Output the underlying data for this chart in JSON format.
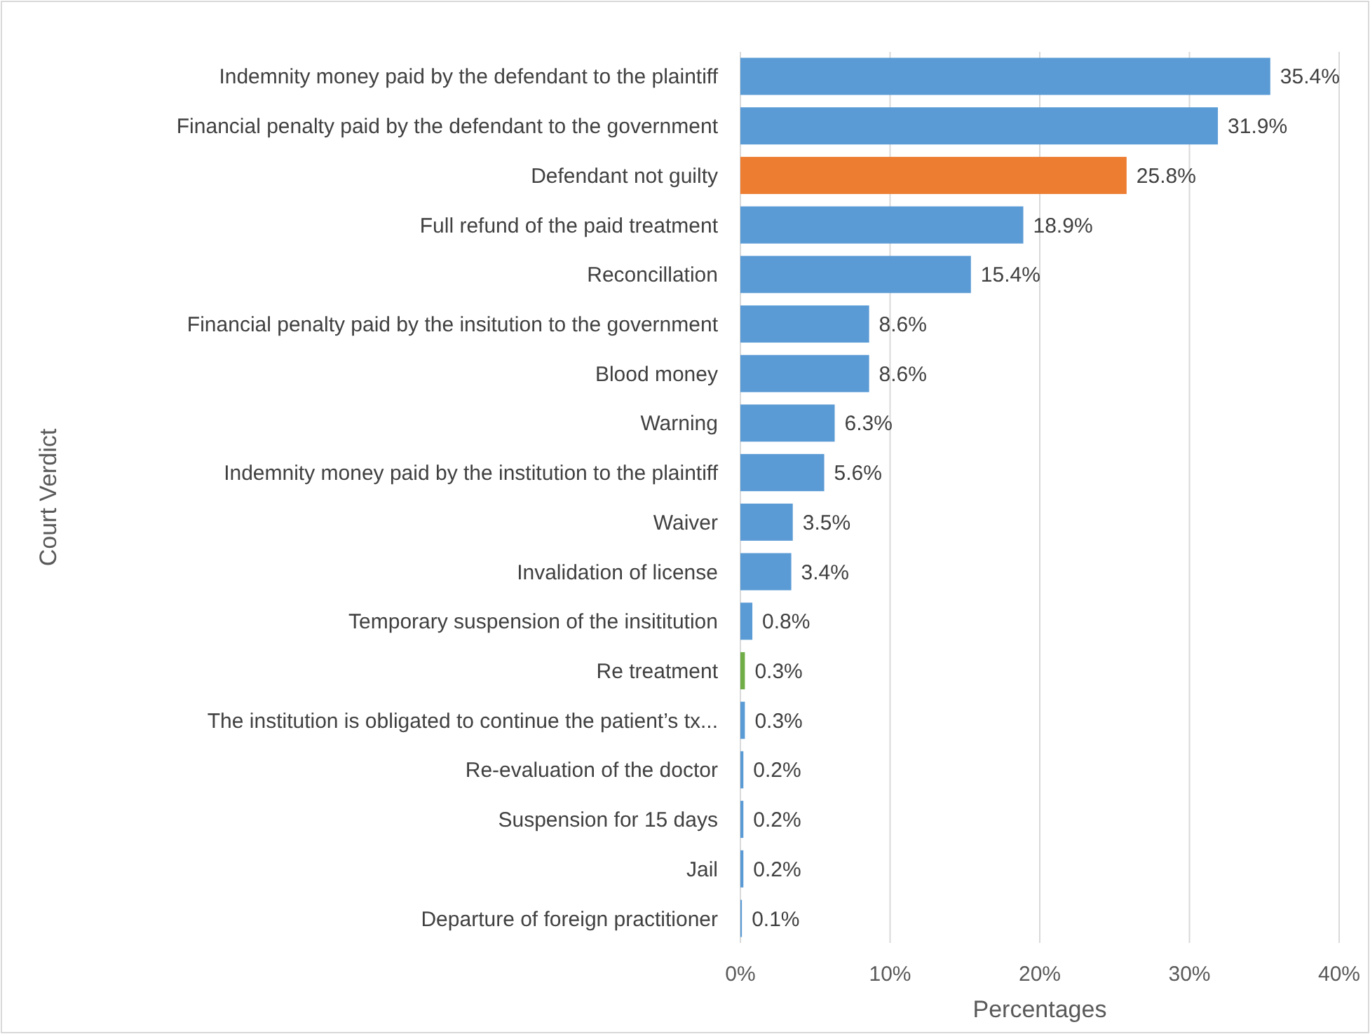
{
  "chart_data": {
    "type": "bar",
    "orientation": "horizontal",
    "xlabel": "Percentages",
    "ylabel": "Court Verdict",
    "categories": [
      "Indemnity money paid by the defendant to the plaintiff",
      "Financial penalty paid by the defendant to the government",
      "Defendant not guilty",
      "Full refund of the paid treatment",
      "Reconcillation",
      "Financial penalty paid by the insitution to the government",
      "Blood money",
      "Warning",
      "Indemnity money paid by the institution to the plaintiff",
      "Waiver",
      "Invalidation of license",
      "Temporary suspension of the insititution",
      "Re treatment",
      "The institution is obligated to continue the patient’s tx...",
      "Re-evaluation of the doctor",
      "Suspension for 15 days",
      "Jail",
      "Departure of foreign practitioner"
    ],
    "values": [
      35.4,
      31.9,
      25.8,
      18.9,
      15.4,
      8.6,
      8.6,
      6.3,
      5.6,
      3.5,
      3.4,
      0.8,
      0.3,
      0.3,
      0.2,
      0.2,
      0.2,
      0.1
    ],
    "value_labels": [
      "35.4%",
      "31.9%",
      "25.8%",
      "18.9%",
      "15.4%",
      "8.6%",
      "8.6%",
      "6.3%",
      "5.6%",
      "3.5%",
      "3.4%",
      "0.8%",
      "0.3%",
      "0.3%",
      "0.2%",
      "0.2%",
      "0.2%",
      "0.1%"
    ],
    "colors": [
      "#5b9bd5",
      "#5b9bd5",
      "#ed7d31",
      "#5b9bd5",
      "#5b9bd5",
      "#5b9bd5",
      "#5b9bd5",
      "#5b9bd5",
      "#5b9bd5",
      "#5b9bd5",
      "#5b9bd5",
      "#5b9bd5",
      "#70ad47",
      "#5b9bd5",
      "#5b9bd5",
      "#5b9bd5",
      "#5b9bd5",
      "#5b9bd5"
    ],
    "xlim": [
      0,
      40
    ],
    "xticks": [
      {
        "value": 0,
        "label": "0%"
      },
      {
        "value": 10,
        "label": "10%"
      },
      {
        "value": 20,
        "label": "20%"
      },
      {
        "value": 30,
        "label": "30%"
      },
      {
        "value": 40,
        "label": "40%"
      }
    ],
    "grid": "x"
  }
}
